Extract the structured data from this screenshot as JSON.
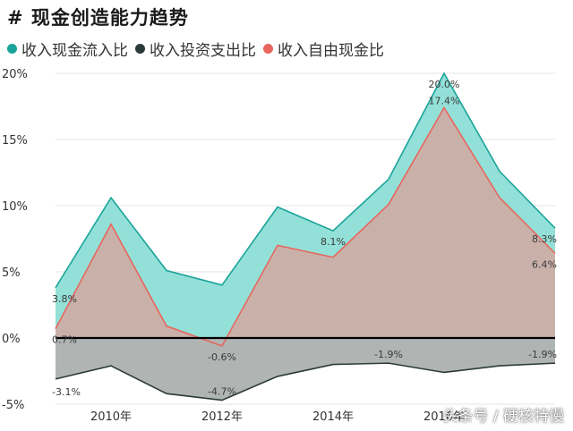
{
  "title": "# 现金创造能力趋势",
  "watermark": "头条号 / 硬核特慢",
  "chart_data": {
    "type": "area",
    "title": "# 现金创造能力趋势",
    "xlabel": "",
    "ylabel": "",
    "x": [
      2009,
      2010,
      2011,
      2012,
      2013,
      2014,
      2015,
      2016,
      2017,
      2018
    ],
    "x_tick_labels": [
      {
        "x": 2010,
        "label": "2010年"
      },
      {
        "x": 2012,
        "label": "2012年"
      },
      {
        "x": 2014,
        "label": "2014年"
      },
      {
        "x": 2016,
        "label": "2016年"
      }
    ],
    "y_ticks": [
      {
        "value": -5,
        "label": "-5%"
      },
      {
        "value": 0,
        "label": "0%"
      },
      {
        "value": 5,
        "label": "5%"
      },
      {
        "value": 10,
        "label": "10%"
      },
      {
        "value": 15,
        "label": "15%"
      },
      {
        "value": 20,
        "label": "20%"
      }
    ],
    "ylim": [
      -5,
      20
    ],
    "grid": true,
    "legend_position": "top-left",
    "series": [
      {
        "name": "收入现金流入比",
        "color": "#1aa39a",
        "fill": "#93e0d8",
        "values": [
          3.8,
          10.6,
          5.1,
          4.0,
          9.9,
          8.1,
          12.0,
          20.0,
          12.6,
          8.3
        ],
        "labels": [
          {
            "x": 2009,
            "text": "3.8%"
          },
          {
            "x": 2014,
            "text": "8.1%"
          },
          {
            "x": 2016,
            "text": "20.0%"
          },
          {
            "x": 2018,
            "text": "8.3%"
          }
        ]
      },
      {
        "name": "收入投资支出比",
        "color": "#2b3a38",
        "fill": "#b0b5b4",
        "values": [
          -3.1,
          -2.1,
          -4.2,
          -4.7,
          -2.9,
          -2.0,
          -1.9,
          -2.6,
          -2.1,
          -1.9
        ],
        "labels": [
          {
            "x": 2009,
            "text": "-3.1%"
          },
          {
            "x": 2012,
            "text": "-4.7%"
          },
          {
            "x": 2015,
            "text": "-1.9%"
          },
          {
            "x": 2018,
            "text": "-1.9%"
          }
        ]
      },
      {
        "name": "收入自由现金比",
        "color": "#e8665d",
        "fill": "#c9b1aa",
        "values": [
          0.7,
          8.6,
          0.9,
          -0.6,
          7.0,
          6.1,
          10.1,
          17.4,
          10.6,
          6.4
        ],
        "labels": [
          {
            "x": 2009,
            "text": "0.7%"
          },
          {
            "x": 2012,
            "text": "-0.6%"
          },
          {
            "x": 2016,
            "text": "17.4%"
          },
          {
            "x": 2018,
            "text": "6.4%"
          }
        ]
      }
    ]
  }
}
